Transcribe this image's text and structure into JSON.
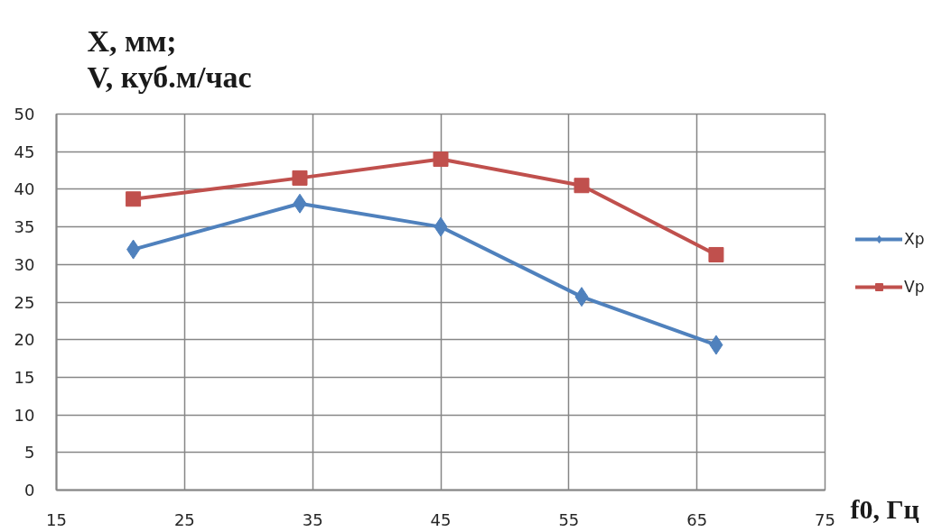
{
  "chart_data": {
    "type": "line",
    "xlabel": "f0, Гц",
    "ylabel": "X, мм;\nV, куб.м/час",
    "x": [
      21,
      34,
      45,
      56,
      66.5
    ],
    "series": [
      {
        "name": "Xp",
        "color": "#4f81bd",
        "marker": "diamond",
        "values": [
          32,
          38.1,
          35,
          25.7,
          19.3
        ]
      },
      {
        "name": "Vp",
        "color": "#c0504d",
        "marker": "square",
        "values": [
          38.7,
          41.5,
          44,
          40.5,
          31.3
        ]
      }
    ],
    "xlim": [
      15,
      75
    ],
    "ylim": [
      0,
      50
    ],
    "xticks": [
      15,
      25,
      35,
      45,
      55,
      65,
      75
    ],
    "yticks": [
      0,
      5,
      10,
      15,
      20,
      25,
      30,
      35,
      40,
      45,
      50
    ],
    "grid": true,
    "legend": "right",
    "line_style": "solid"
  }
}
